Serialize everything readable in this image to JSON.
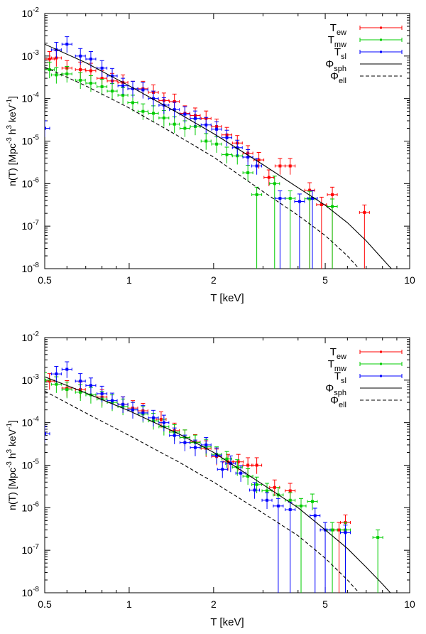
{
  "colors": {
    "ew": "#ff0000",
    "mw": "#00cc00",
    "sl": "#0000ff",
    "model": "#000000"
  },
  "chart_data": [
    {
      "type": "scatter",
      "xscale": "log",
      "yscale": "log",
      "xlim": [
        0.5,
        10
      ],
      "ylim": [
        1e-08,
        0.01
      ],
      "xlabel": "T [keV]",
      "ylabel": "n(T) [Mpc^-3 h^3 keV^-1]",
      "ylabel_parts": {
        "main": "n(T) [Mpc",
        "e1": "-3",
        "mid": " h",
        "e2": "3",
        "unit": " keV",
        "e3": "-1",
        "end": "]"
      },
      "xticks": [
        0.5,
        1,
        2,
        5,
        10
      ],
      "xtick_labels": [
        "0.5",
        "1",
        "2",
        "5",
        "10"
      ],
      "ytick_labels": [
        {
          "base": "10",
          "exp": "-8"
        },
        {
          "base": "10",
          "exp": "-7"
        },
        {
          "base": "10",
          "exp": "-6"
        },
        {
          "base": "10",
          "exp": "-5"
        },
        {
          "base": "10",
          "exp": "-4"
        },
        {
          "base": "10",
          "exp": "-3"
        },
        {
          "base": "10",
          "exp": "-2"
        }
      ],
      "legend": "top-right",
      "series": [
        {
          "name": "T_ew",
          "label": {
            "main": "T",
            "sub": "ew"
          },
          "kind": "errorbar",
          "color": "#ff0000",
          "points": [
            [
              0.52,
              0.00085
            ],
            [
              0.55,
              0.0009
            ],
            [
              0.6,
              0.00052
            ],
            [
              0.67,
              0.00048
            ],
            [
              0.73,
              0.00045
            ],
            [
              0.8,
              0.0003
            ],
            [
              0.87,
              0.00026
            ],
            [
              0.95,
              0.00024
            ],
            [
              1.03,
              0.00017
            ],
            [
              1.12,
              0.00017
            ],
            [
              1.22,
              0.00014
            ],
            [
              1.33,
              9e-05
            ],
            [
              1.45,
              8.5e-05
            ],
            [
              1.58,
              4.5e-05
            ],
            [
              1.72,
              4e-05
            ],
            [
              1.88,
              3.4e-05
            ],
            [
              2.05,
              2.2e-05
            ],
            [
              2.23,
              1.4e-05
            ],
            [
              2.43,
              9e-06
            ],
            [
              2.65,
              5.2e-06
            ],
            [
              2.9,
              3.6e-06
            ],
            [
              3.15,
              1.4e-06
            ],
            [
              3.45,
              2.6e-06
            ],
            [
              3.75,
              2.6e-06
            ],
            [
              4.4,
              7e-07
            ],
            [
              4.85,
              3.2e-07
            ],
            [
              5.3,
              5.5e-07
            ],
            [
              6.9,
              2.1e-07
            ]
          ]
        },
        {
          "name": "T_mw",
          "label": {
            "main": "T",
            "sub": "mw"
          },
          "kind": "errorbar",
          "color": "#00cc00",
          "points": [
            [
              0.52,
              0.00048
            ],
            [
              0.55,
              0.00036
            ],
            [
              0.6,
              0.00038
            ],
            [
              0.67,
              0.00027
            ],
            [
              0.73,
              0.00023
            ],
            [
              0.8,
              0.00019
            ],
            [
              0.87,
              0.00015
            ],
            [
              0.95,
              0.00012
            ],
            [
              1.03,
              8e-05
            ],
            [
              1.12,
              5e-05
            ],
            [
              1.22,
              4.5e-05
            ],
            [
              1.33,
              3.5e-05
            ],
            [
              1.45,
              2.5e-05
            ],
            [
              1.58,
              2e-05
            ],
            [
              1.72,
              2.2e-05
            ],
            [
              1.88,
              1e-05
            ],
            [
              2.05,
              8.5e-06
            ],
            [
              2.23,
              4.8e-06
            ],
            [
              2.43,
              4.5e-06
            ],
            [
              2.65,
              1.8e-06
            ],
            [
              2.85,
              5.5e-07
            ],
            [
              3.3,
              1e-06
            ],
            [
              3.75,
              4.5e-07
            ],
            [
              4.4,
              4.4e-07
            ],
            [
              5.3,
              2.9e-07
            ]
          ]
        },
        {
          "name": "T_sl",
          "label": {
            "main": "T",
            "sub": "sl"
          },
          "kind": "errorbar",
          "color": "#0000ff",
          "points": [
            [
              0.5,
              2e-05
            ],
            [
              0.55,
              0.0014
            ],
            [
              0.6,
              0.0019
            ],
            [
              0.67,
              0.001
            ],
            [
              0.73,
              0.00085
            ],
            [
              0.8,
              0.00052
            ],
            [
              0.87,
              0.00034
            ],
            [
              0.95,
              0.0002
            ],
            [
              1.03,
              0.00017
            ],
            [
              1.12,
              0.00016
            ],
            [
              1.22,
              0.0001
            ],
            [
              1.33,
              7e-05
            ],
            [
              1.45,
              5.5e-05
            ],
            [
              1.58,
              4.3e-05
            ],
            [
              1.72,
              3.4e-05
            ],
            [
              1.88,
              2.4e-05
            ],
            [
              2.05,
              1.9e-05
            ],
            [
              2.23,
              1.2e-05
            ],
            [
              2.43,
              7e-06
            ],
            [
              2.65,
              4.2e-06
            ],
            [
              2.85,
              2.6e-06
            ],
            [
              3.45,
              4.5e-07
            ],
            [
              4.05,
              3.8e-07
            ],
            [
              4.5,
              4.5e-07
            ]
          ]
        },
        {
          "name": "Phi_sph",
          "label": {
            "main": "Φ",
            "sub": "sph"
          },
          "kind": "line",
          "dash": "solid",
          "color": "#000000",
          "points": [
            [
              0.5,
              0.0019
            ],
            [
              0.7,
              0.0007
            ],
            [
              1,
              0.0002
            ],
            [
              1.5,
              4.5e-05
            ],
            [
              2,
              1.5e-05
            ],
            [
              3,
              2.8e-06
            ],
            [
              4,
              8e-07
            ],
            [
              5,
              3.1e-07
            ],
            [
              6,
              1.2e-07
            ],
            [
              7,
              4.5e-08
            ],
            [
              8,
              1.7e-08
            ],
            [
              8.8,
              8.5e-09
            ]
          ]
        },
        {
          "name": "Phi_ell",
          "label": {
            "main": "Φ",
            "sub": "ell"
          },
          "kind": "line",
          "dash": "dashed",
          "color": "#000000",
          "points": [
            [
              0.5,
              0.00055
            ],
            [
              0.7,
              0.0002
            ],
            [
              1,
              6e-05
            ],
            [
              1.5,
              1.3e-05
            ],
            [
              2,
              4.2e-06
            ],
            [
              3,
              6.5e-07
            ],
            [
              4,
              1.8e-07
            ],
            [
              5,
              6e-08
            ],
            [
              6,
              2e-08
            ],
            [
              6.8,
              8e-09
            ]
          ]
        }
      ]
    },
    {
      "type": "scatter",
      "xscale": "log",
      "yscale": "log",
      "xlim": [
        0.5,
        10
      ],
      "ylim": [
        1e-08,
        0.01
      ],
      "xlabel": "T [keV]",
      "ylabel": "n(T) [Mpc^-3 h^3 keV^-1]",
      "ylabel_parts": {
        "main": "n(T) [Mpc",
        "e1": "-3",
        "mid": " h",
        "e2": "3",
        "unit": " keV",
        "e3": "-1",
        "end": "]"
      },
      "xticks": [
        0.5,
        1,
        2,
        5,
        10
      ],
      "xtick_labels": [
        "0.5",
        "1",
        "2",
        "5",
        "10"
      ],
      "ytick_labels": [
        {
          "base": "10",
          "exp": "-8"
        },
        {
          "base": "10",
          "exp": "-7"
        },
        {
          "base": "10",
          "exp": "-6"
        },
        {
          "base": "10",
          "exp": "-5"
        },
        {
          "base": "10",
          "exp": "-4"
        },
        {
          "base": "10",
          "exp": "-3"
        },
        {
          "base": "10",
          "exp": "-2"
        }
      ],
      "legend": "top-right",
      "series": [
        {
          "name": "T_ew",
          "label": {
            "main": "T",
            "sub": "ew"
          },
          "kind": "errorbar",
          "color": "#ff0000",
          "points": [
            [
              0.52,
              0.00095
            ],
            [
              0.6,
              0.00065
            ],
            [
              0.67,
              0.0006
            ],
            [
              0.8,
              0.0004
            ],
            [
              0.95,
              0.00027
            ],
            [
              1.03,
              0.00022
            ],
            [
              1.12,
              0.00019
            ],
            [
              1.3,
              0.00012
            ],
            [
              1.45,
              6.5e-05
            ],
            [
              1.58,
              4.5e-05
            ],
            [
              1.72,
              3.5e-05
            ],
            [
              1.88,
              2.5e-05
            ],
            [
              2.05,
              1.6e-05
            ],
            [
              2.25,
              1.2e-05
            ],
            [
              2.45,
              1.2e-05
            ],
            [
              2.65,
              1e-05
            ],
            [
              2.85,
              1e-05
            ],
            [
              3.3,
              3e-06
            ],
            [
              3.75,
              2.5e-06
            ],
            [
              5.6,
              3e-07
            ],
            [
              5.9,
              4.5e-07
            ]
          ]
        },
        {
          "name": "T_mw",
          "label": {
            "main": "T",
            "sub": "mw"
          },
          "kind": "errorbar",
          "color": "#00cc00",
          "points": [
            [
              0.5,
              0.001
            ],
            [
              0.55,
              0.0008
            ],
            [
              0.6,
              0.0006
            ],
            [
              0.67,
              0.00052
            ],
            [
              0.73,
              0.00045
            ],
            [
              0.8,
              0.00036
            ],
            [
              0.87,
              0.0003
            ],
            [
              0.95,
              0.00024
            ],
            [
              1.03,
              0.0002
            ],
            [
              1.12,
              0.00016
            ],
            [
              1.22,
              0.00011
            ],
            [
              1.33,
              8e-05
            ],
            [
              1.45,
              6e-05
            ],
            [
              1.58,
              4.5e-05
            ],
            [
              1.72,
              3.4e-05
            ],
            [
              1.88,
              2.7e-05
            ],
            [
              2.05,
              1.8e-05
            ],
            [
              2.23,
              1.4e-05
            ],
            [
              2.43,
              9e-06
            ],
            [
              2.65,
              5.5e-06
            ],
            [
              2.85,
              3.5e-06
            ],
            [
              3.1,
              2.5e-06
            ],
            [
              3.4,
              2e-06
            ],
            [
              3.75,
              1.5e-06
            ],
            [
              4.1,
              1.1e-06
            ],
            [
              4.5,
              1.4e-06
            ],
            [
              5.3,
              3e-07
            ],
            [
              5.9,
              3e-07
            ],
            [
              7.7,
              2e-07
            ]
          ]
        },
        {
          "name": "T_sl",
          "label": {
            "main": "T",
            "sub": "sl"
          },
          "kind": "errorbar",
          "color": "#0000ff",
          "points": [
            [
              0.5,
              5.5e-05
            ],
            [
              0.55,
              0.0014
            ],
            [
              0.6,
              0.0018
            ],
            [
              0.67,
              0.00095
            ],
            [
              0.73,
              0.00075
            ],
            [
              0.8,
              0.00048
            ],
            [
              0.87,
              0.00033
            ],
            [
              0.95,
              0.00027
            ],
            [
              1.03,
              0.0002
            ],
            [
              1.12,
              0.00017
            ],
            [
              1.22,
              0.00013
            ],
            [
              1.33,
              0.0001
            ],
            [
              1.45,
              5e-05
            ],
            [
              1.58,
              3.4e-05
            ],
            [
              1.72,
              2.6e-05
            ],
            [
              1.88,
              3e-05
            ],
            [
              2.05,
              1.7e-05
            ],
            [
              2.15,
              8e-06
            ],
            [
              2.3,
              1.1e-05
            ],
            [
              2.5,
              6.5e-06
            ],
            [
              2.8,
              2.6e-06
            ],
            [
              3.1,
              1.5e-06
            ],
            [
              3.4,
              1.1e-06
            ],
            [
              3.75,
              9e-07
            ],
            [
              4.6,
              6.5e-07
            ],
            [
              5.0,
              3e-07
            ],
            [
              5.9,
              2.6e-07
            ]
          ]
        },
        {
          "name": "Phi_sph",
          "label": {
            "main": "Φ",
            "sub": "sph"
          },
          "kind": "line",
          "dash": "solid",
          "color": "#000000",
          "points": [
            [
              0.5,
              0.0012
            ],
            [
              0.7,
              0.0005
            ],
            [
              1,
              0.00019
            ],
            [
              1.5,
              5.5e-05
            ],
            [
              2,
              2e-05
            ],
            [
              3,
              3.5e-06
            ],
            [
              4,
              1e-06
            ],
            [
              5,
              3e-07
            ],
            [
              6,
              1.1e-07
            ],
            [
              7,
              4e-08
            ],
            [
              8,
              1.6e-08
            ],
            [
              8.8,
              8e-09
            ]
          ]
        },
        {
          "name": "Phi_ell",
          "label": {
            "main": "Φ",
            "sub": "ell"
          },
          "kind": "line",
          "dash": "dashed",
          "color": "#000000",
          "points": [
            [
              0.5,
              0.00055
            ],
            [
              0.7,
              0.00017
            ],
            [
              1,
              5e-05
            ],
            [
              1.5,
              1.2e-05
            ],
            [
              2,
              4e-06
            ],
            [
              3,
              7.5e-07
            ],
            [
              4,
              2.2e-07
            ],
            [
              5,
              6.5e-08
            ],
            [
              6,
              2e-08
            ],
            [
              6.8,
              8e-09
            ]
          ]
        }
      ]
    }
  ]
}
